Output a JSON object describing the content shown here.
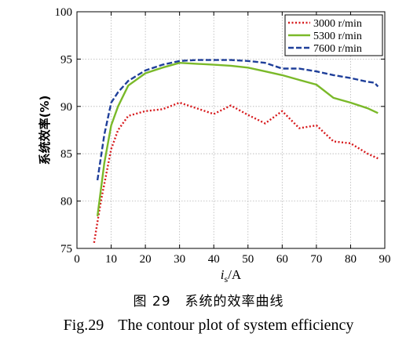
{
  "chart_data": {
    "type": "line",
    "xlabel": "i",
    "xlabel_sub": "s",
    "xlabel_unit": "/A",
    "ylabel": "系统效率(%)",
    "xlim": [
      0,
      90
    ],
    "ylim": [
      75,
      100
    ],
    "xticks": [
      0,
      10,
      20,
      30,
      40,
      50,
      60,
      70,
      80,
      90
    ],
    "yticks": [
      75,
      80,
      85,
      90,
      95,
      100
    ],
    "grid": true,
    "legend_position": "top-right",
    "series": [
      {
        "name": "3000 r/min",
        "color": "#d7191c",
        "style": "dotted",
        "x": [
          5,
          7,
          10,
          12,
          15,
          20,
          25,
          30,
          35,
          40,
          45,
          50,
          55,
          60,
          65,
          70,
          75,
          80,
          85,
          88
        ],
        "y": [
          75.6,
          80,
          85.5,
          87.5,
          89,
          89.5,
          89.7,
          90.4,
          89.8,
          89.2,
          90.1,
          89.1,
          88.2,
          89.5,
          87.7,
          88,
          86.3,
          86.1,
          85,
          84.5
        ]
      },
      {
        "name": "5300 r/min",
        "color": "#7ab929",
        "style": "solid",
        "x": [
          6,
          8,
          10,
          12,
          15,
          20,
          25,
          30,
          35,
          40,
          45,
          50,
          55,
          60,
          65,
          70,
          75,
          80,
          85,
          88
        ],
        "y": [
          78.4,
          84,
          88,
          90,
          92.2,
          93.5,
          94.1,
          94.6,
          94.5,
          94.4,
          94.3,
          94.1,
          93.7,
          93.3,
          92.8,
          92.3,
          90.9,
          90.4,
          89.8,
          89.3
        ]
      },
      {
        "name": "7600 r/min",
        "color": "#1f3f9a",
        "style": "dashed",
        "x": [
          6,
          8,
          10,
          12,
          15,
          20,
          25,
          30,
          35,
          40,
          45,
          50,
          55,
          60,
          65,
          70,
          75,
          80,
          85,
          87,
          88
        ],
        "y": [
          82.2,
          87,
          90.4,
          91.5,
          92.7,
          93.8,
          94.4,
          94.8,
          94.9,
          94.9,
          94.9,
          94.8,
          94.6,
          94,
          94,
          93.7,
          93.3,
          93,
          92.6,
          92.5,
          92.1
        ]
      }
    ]
  },
  "caption": {
    "cn_fig": "图 29",
    "cn_text": "系统的效率曲线",
    "en_fig": "Fig.29",
    "en_text": "The contour plot of system efficiency"
  }
}
